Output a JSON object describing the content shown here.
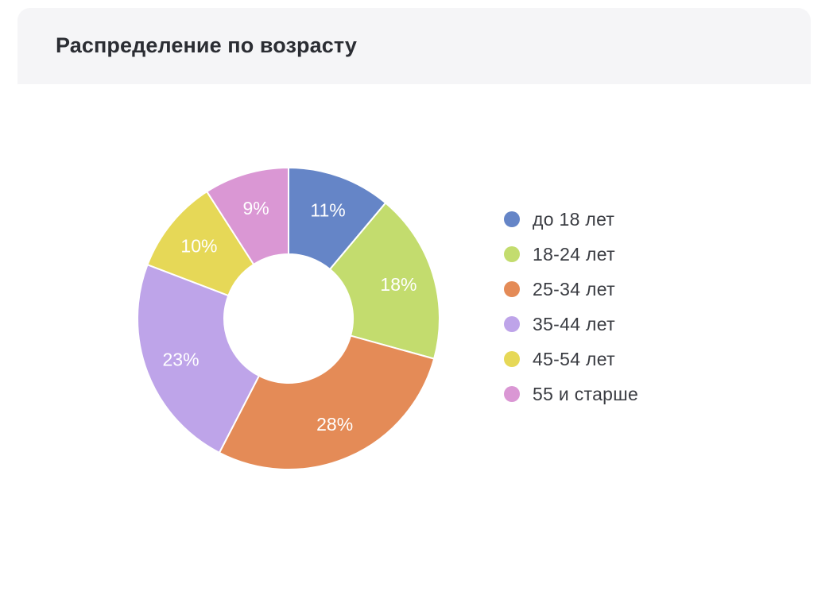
{
  "card": {
    "title": "Распределение по возрасту"
  },
  "chart_data": {
    "type": "pie",
    "variant": "donut",
    "title": "Распределение по возрасту",
    "start_angle_deg": 0,
    "direction": "clockwise",
    "legend_position": "right",
    "slices": [
      {
        "name": "до 18 лет",
        "value": 11,
        "label": "11%",
        "color": "#6585c7"
      },
      {
        "name": "18-24 лет",
        "value": 18,
        "label": "18%",
        "color": "#c3dc6e"
      },
      {
        "name": "25-34 лет",
        "value": 28,
        "label": "28%",
        "color": "#e48b57"
      },
      {
        "name": "35-44 лет",
        "value": 23,
        "label": "23%",
        "color": "#bea4e9"
      },
      {
        "name": "45-54 лет",
        "value": 10,
        "label": "10%",
        "color": "#e6d857"
      },
      {
        "name": "55 и старше",
        "value": 9,
        "label": "9%",
        "color": "#da97d4"
      }
    ]
  }
}
